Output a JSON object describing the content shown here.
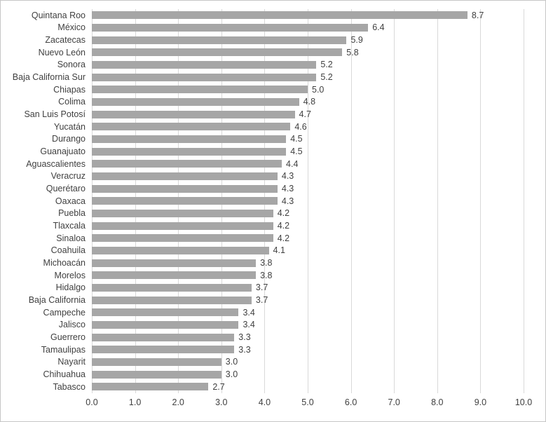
{
  "chart_data": {
    "type": "bar",
    "orientation": "horizontal",
    "title": "",
    "xlabel": "",
    "ylabel": "",
    "xlim": [
      0,
      10
    ],
    "x_ticks": [
      "0.0",
      "1.0",
      "2.0",
      "3.0",
      "4.0",
      "5.0",
      "6.0",
      "7.0",
      "8.0",
      "9.0",
      "10.0"
    ],
    "grid": "vertical-only",
    "legend": "none",
    "categories": [
      "Quintana Roo",
      "México",
      "Zacatecas",
      "Nuevo León",
      "Sonora",
      "Baja California Sur",
      "Chiapas",
      "Colima",
      "San Luis Potosí",
      "Yucatán",
      "Durango",
      "Guanajuato",
      "Aguascalientes",
      "Veracruz",
      "Querétaro",
      "Oaxaca",
      "Puebla",
      "Tlaxcala",
      "Sinaloa",
      "Coahuila",
      "Michoacán",
      "Morelos",
      "Hidalgo",
      "Baja California",
      "Campeche",
      "Jalisco",
      "Guerrero",
      "Tamaulipas",
      "Nayarit",
      "Chihuahua",
      "Tabasco"
    ],
    "values": [
      8.7,
      6.4,
      5.9,
      5.8,
      5.2,
      5.2,
      5.0,
      4.8,
      4.7,
      4.6,
      4.5,
      4.5,
      4.4,
      4.3,
      4.3,
      4.3,
      4.2,
      4.2,
      4.2,
      4.1,
      3.8,
      3.8,
      3.7,
      3.7,
      3.4,
      3.4,
      3.3,
      3.3,
      3.0,
      3.0,
      2.7
    ],
    "value_labels": [
      "8.7",
      "6.4",
      "5.9",
      "5.8",
      "5.2",
      "5.2",
      "5.0",
      "4.8",
      "4.7",
      "4.6",
      "4.5",
      "4.5",
      "4.4",
      "4.3",
      "4.3",
      "4.3",
      "4.2",
      "4.2",
      "4.2",
      "4.1",
      "3.8",
      "3.8",
      "3.7",
      "3.7",
      "3.4",
      "3.4",
      "3.3",
      "3.3",
      "3.0",
      "3.0",
      "2.7"
    ],
    "colors": {
      "bar_fill": "#a6a6a6",
      "gridline": "#d9d9d9",
      "text": "#404040",
      "border": "#c6c6c6",
      "background": "#ffffff"
    }
  }
}
